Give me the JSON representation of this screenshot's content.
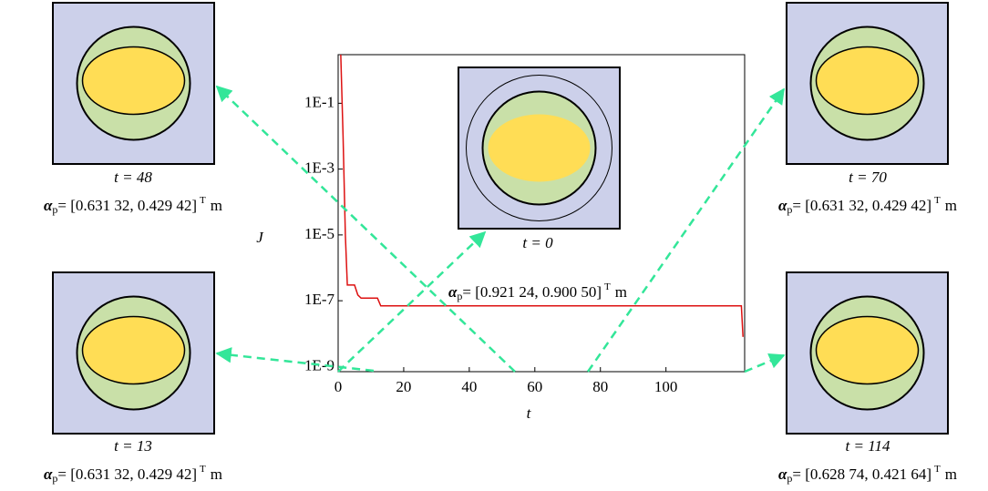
{
  "chart_data": {
    "type": "line",
    "y_label": "J",
    "x_label": "t",
    "xlim": [
      0,
      124
    ],
    "xticks": [
      0,
      20,
      40,
      60,
      80,
      100
    ],
    "ylim": [
      7e-10,
      3
    ],
    "log_y": true,
    "yticks": [
      {
        "value": 0.1,
        "label": "1E-1"
      },
      {
        "value": 0.001,
        "label": "1E-3"
      },
      {
        "value": 1e-05,
        "label": "1E-5"
      },
      {
        "value": 1e-07,
        "label": "1E-7"
      },
      {
        "value": 1e-09,
        "label": "1E-9"
      }
    ],
    "series": [
      {
        "color": "#dd1111",
        "x": [
          0.8,
          1.5,
          2.2,
          2.8,
          5,
          6,
          7,
          12,
          13,
          123,
          123.5
        ],
        "values": [
          3,
          0.01,
          1e-05,
          3e-07,
          3e-07,
          1.5e-07,
          1.2e-07,
          1.2e-07,
          7e-08,
          7e-08,
          8e-09
        ]
      }
    ]
  },
  "panels": [
    {
      "t": "t = 48",
      "alpha": "α",
      "sub": "p",
      "vector": "= [0.631 32, 0.429 42]",
      "sup": "T",
      "unit": "m"
    },
    {
      "t": "t = 13",
      "alpha": "α",
      "sub": "p",
      "vector": "= [0.631 32, 0.429 42]",
      "sup": "T",
      "unit": "m"
    },
    {
      "t": "t = 0",
      "alpha": "α",
      "sub": "p",
      "vector": "= [0.921 24, 0.900 50]",
      "sup": "T",
      "unit": "m"
    },
    {
      "t": "t = 70",
      "alpha": "α",
      "sub": "p",
      "vector": "= [0.631 32, 0.429 42]",
      "sup": "T",
      "unit": "m"
    },
    {
      "t": "t = 114",
      "alpha": "α",
      "sub": "p",
      "vector": "= [0.628 74, 0.421 64]",
      "sup": "T",
      "unit": "m"
    }
  ]
}
